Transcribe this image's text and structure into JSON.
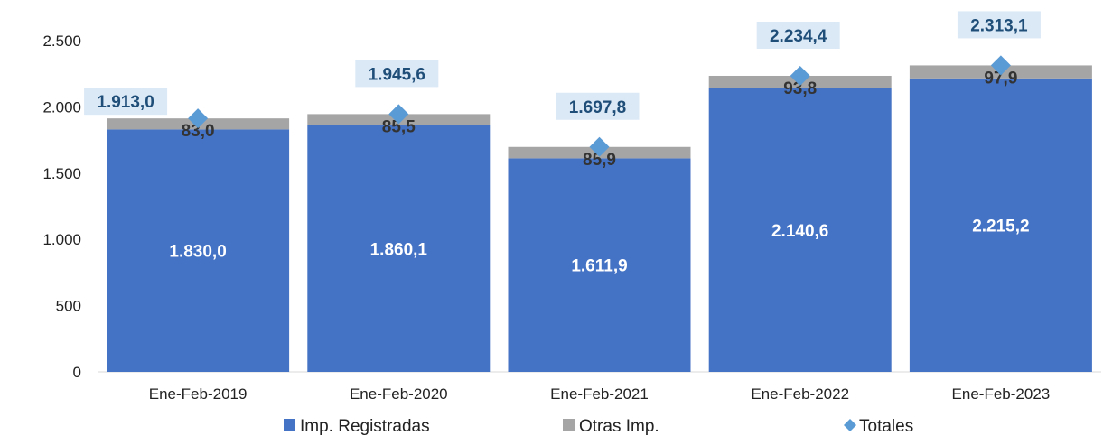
{
  "chart_data": {
    "type": "bar",
    "stacked": true,
    "categories": [
      "Ene-Feb-2019",
      "Ene-Feb-2020",
      "Ene-Feb-2021",
      "Ene-Feb-2022",
      "Ene-Feb-2023"
    ],
    "series": [
      {
        "name": "Imp. Registradas",
        "values": [
          1830.0,
          1860.1,
          1611.9,
          2140.6,
          2215.2
        ],
        "labels": [
          "1.830,0",
          "1.860,1",
          "1.611,9",
          "2.140,6",
          "2.215,2"
        ],
        "color": "#4472c4"
      },
      {
        "name": "Otras Imp.",
        "values": [
          83.0,
          85.5,
          85.9,
          93.8,
          97.9
        ],
        "labels": [
          "83,0",
          "85,5",
          "85,9",
          "93,8",
          "97,9"
        ],
        "color": "#a5a5a5"
      }
    ],
    "totals": {
      "name": "Totales",
      "values": [
        1913.0,
        1945.6,
        1697.8,
        2234.4,
        2313.1
      ],
      "labels": [
        "1.913,0",
        "1.945,6",
        "1.697,8",
        "2.234,4",
        "2.313,1"
      ],
      "color": "#5b9bd5"
    },
    "ylim": [
      0,
      2500
    ],
    "yticks": [
      0,
      500,
      1000,
      1500,
      2000,
      2500
    ],
    "ytick_labels": [
      "0",
      "500",
      "1.000",
      "1.500",
      "2.000",
      "2.500"
    ],
    "grid": false,
    "legend_position": "bottom",
    "total_label_bg": "#dbe9f6"
  }
}
